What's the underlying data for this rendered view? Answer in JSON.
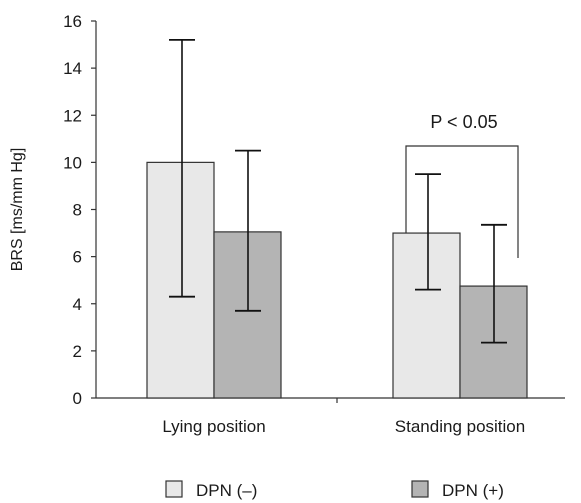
{
  "chart_data": {
    "type": "bar",
    "categories": [
      "Lying position",
      "Standing position"
    ],
    "series": [
      {
        "name": "DPN (–)",
        "values": [
          10.0,
          7.0
        ],
        "err_low": [
          4.3,
          4.6
        ],
        "err_high": [
          15.2,
          9.5
        ],
        "color": "#e8e8e8"
      },
      {
        "name": "DPN (+)",
        "values": [
          7.05,
          4.75
        ],
        "err_low": [
          3.7,
          2.35
        ],
        "err_high": [
          10.5,
          7.35
        ],
        "color": "#b4b4b4"
      }
    ],
    "ylabel": "BRS [ms/mm Hg]",
    "ylim": [
      0,
      16
    ],
    "yticks": [
      "0",
      "2",
      "4",
      "6",
      "8",
      "10",
      "12",
      "14",
      "16"
    ],
    "annotation": {
      "text": "P < 0.05",
      "category_index": 1
    },
    "legend_position": "bottom",
    "grid": false
  }
}
